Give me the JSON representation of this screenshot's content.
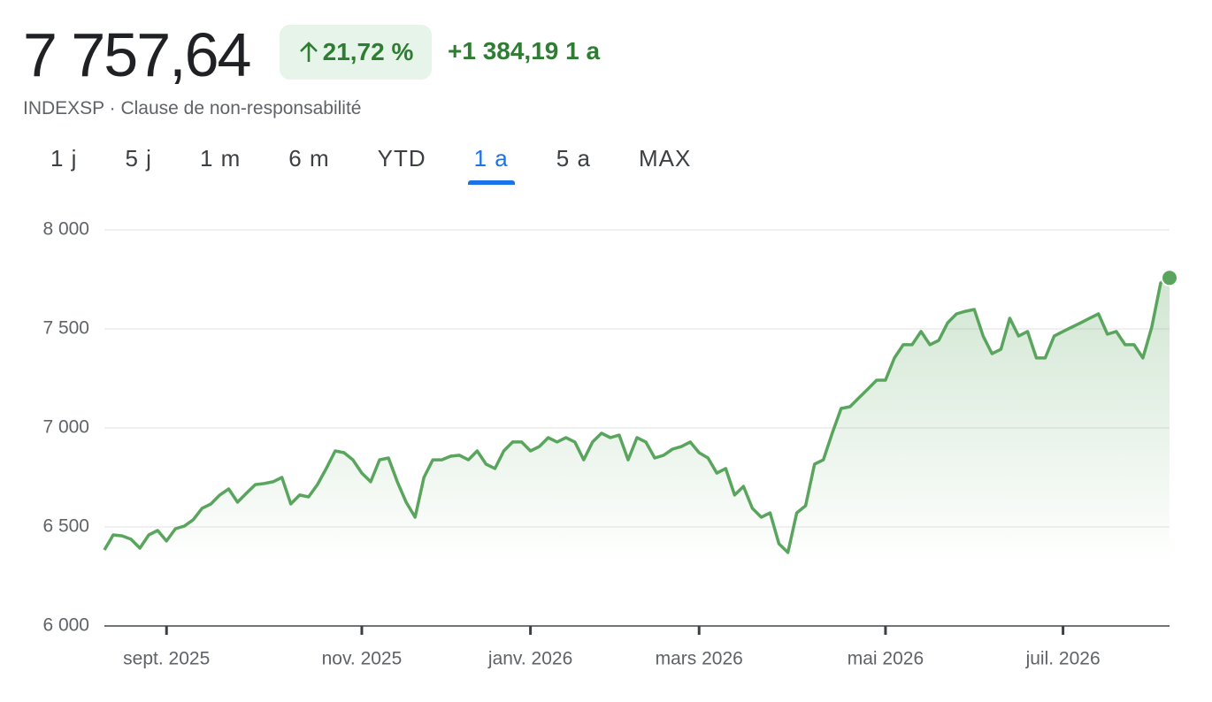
{
  "header": {
    "price": "7 757,64",
    "change_pct": "21,72 %",
    "change_abs": "+1 384,19",
    "period": "1 a",
    "subtitle": "INDEXSP · Clause de non-responsabilité"
  },
  "tabs": {
    "items": [
      "1 j",
      "5 j",
      "1 m",
      "6 m",
      "YTD",
      "1 a",
      "5 a",
      "MAX"
    ],
    "active": 5
  },
  "chart_data": {
    "type": "line",
    "color": "#5aa55e",
    "grid": true,
    "categories": [
      null,
      null,
      null,
      null,
      null,
      null,
      null,
      "sept. 2025",
      null,
      null,
      null,
      null,
      null,
      null,
      null,
      null,
      null,
      null,
      null,
      null,
      null,
      null,
      null,
      null,
      null,
      null,
      null,
      null,
      null,
      "nov. 2025",
      null,
      null,
      null,
      null,
      null,
      null,
      null,
      null,
      null,
      null,
      null,
      null,
      null,
      null,
      null,
      null,
      null,
      null,
      "janv. 2026",
      null,
      null,
      null,
      null,
      null,
      null,
      null,
      null,
      null,
      null,
      null,
      null,
      null,
      null,
      null,
      null,
      null,
      null,
      "mars 2026",
      null,
      null,
      null,
      null,
      null,
      null,
      null,
      null,
      null,
      null,
      null,
      null,
      null,
      null,
      null,
      null,
      null,
      null,
      null,
      null,
      "mai 2026",
      null,
      null,
      null,
      null,
      null,
      null,
      null,
      null,
      null,
      null,
      null,
      null,
      null,
      null,
      null,
      null,
      null,
      null,
      null,
      "juil. 2026",
      null,
      null,
      null,
      null,
      null,
      null,
      null,
      null,
      null,
      null,
      null,
      null
    ],
    "values": [
      6384,
      6460,
      6455,
      6438,
      6393,
      6460,
      6482,
      6429,
      6491,
      6504,
      6536,
      6594,
      6616,
      6661,
      6692,
      6625,
      6670,
      6714,
      6719,
      6728,
      6750,
      6616,
      6661,
      6652,
      6714,
      6795,
      6884,
      6875,
      6839,
      6772,
      6728,
      6839,
      6848,
      6728,
      6625,
      6549,
      6750,
      6839,
      6839,
      6857,
      6862,
      6839,
      6884,
      6817,
      6795,
      6884,
      6929,
      6929,
      6884,
      6906,
      6951,
      6929,
      6951,
      6929,
      6839,
      6929,
      6973,
      6951,
      6964,
      6839,
      6951,
      6929,
      6848,
      6862,
      6893,
      6906,
      6929,
      6875,
      6848,
      6772,
      6795,
      6661,
      6705,
      6594,
      6549,
      6571,
      6415,
      6371,
      6571,
      6607,
      6817,
      6839,
      6973,
      7098,
      7107,
      7152,
      7196,
      7241,
      7241,
      7353,
      7420,
      7420,
      7487,
      7420,
      7442,
      7531,
      7576,
      7589,
      7598,
      7464,
      7375,
      7397,
      7554,
      7464,
      7487,
      7353,
      7353,
      7464,
      7487,
      7509,
      7531,
      7554,
      7576,
      7473,
      7487,
      7420,
      7420,
      7353,
      7509,
      7732,
      7757.64
    ],
    "ylim": [
      6000,
      8000
    ],
    "yticks": [
      {
        "value": 6000,
        "label": "6 000"
      },
      {
        "value": 6500,
        "label": "6 500"
      },
      {
        "value": 7000,
        "label": "7 000"
      },
      {
        "value": 7500,
        "label": "7 500"
      },
      {
        "value": 8000,
        "label": "8 000"
      }
    ]
  }
}
